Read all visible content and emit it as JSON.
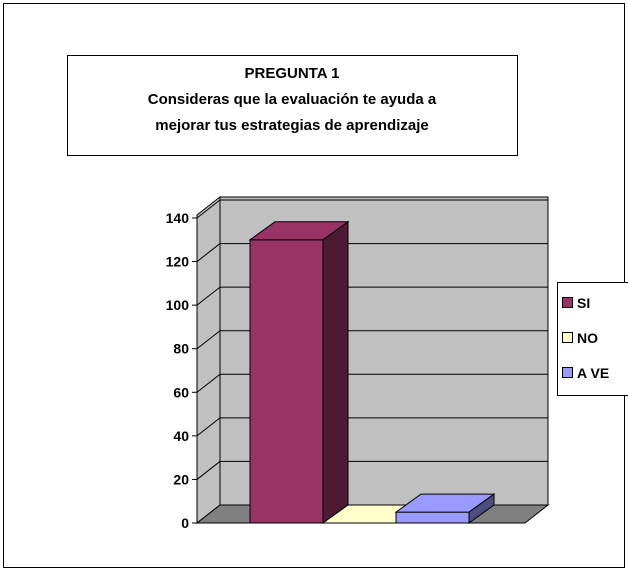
{
  "chart_data": {
    "type": "bar",
    "title": [
      "PREGUNTA 1",
      "Consideras que la evaluación te ayuda a",
      "mejorar tus estrategias de aprendizaje"
    ],
    "series": [
      {
        "name": "SI",
        "color": "#993366",
        "values": [
          130
        ]
      },
      {
        "name": "NO",
        "color": "#ffffcc",
        "values": [
          0
        ]
      },
      {
        "name": "A VE",
        "color": "#9999ff",
        "values": [
          5
        ]
      }
    ],
    "ylim": [
      0,
      140
    ],
    "yticks": [
      0,
      20,
      40,
      60,
      80,
      100,
      120,
      140
    ],
    "grid": true,
    "legend": "right"
  }
}
